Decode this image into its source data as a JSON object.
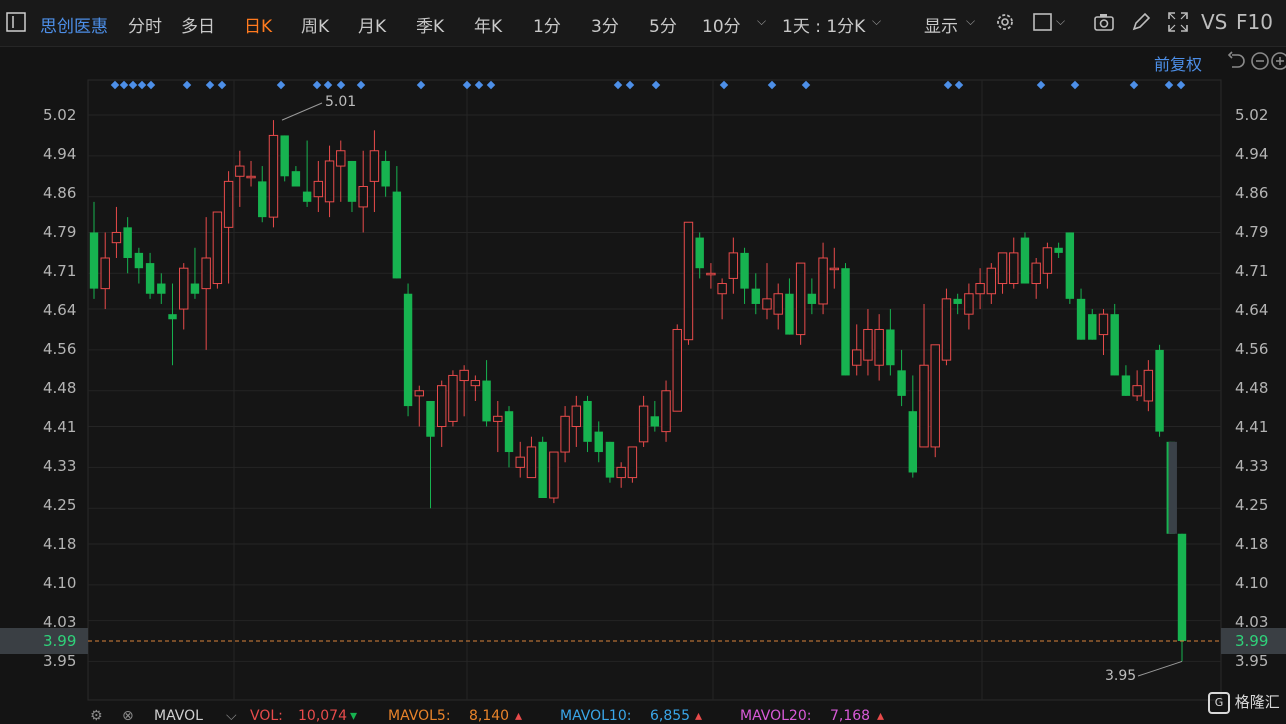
{
  "toolbar": {
    "expand_icon": "sidebar-toggle-icon",
    "stock_name": "思创医惠",
    "tabs": [
      "分时",
      "多日",
      "日K",
      "周K",
      "月K",
      "季K",
      "年K",
      "1分",
      "3分",
      "5分",
      "10分"
    ],
    "active_tab": "日K",
    "period_select": "1天 : 1分K",
    "display_label": "显示",
    "vs_label": "VS",
    "f10_label": "F10"
  },
  "subbar": {
    "adjust_label": "前复权"
  },
  "axis": {
    "left": [
      "5.02",
      "4.94",
      "4.86",
      "4.79",
      "4.71",
      "4.64",
      "4.56",
      "4.48",
      "4.41",
      "4.33",
      "4.25",
      "4.18",
      "4.10",
      "4.03",
      "3.99",
      "3.95"
    ],
    "right": [
      "5.02",
      "4.94",
      "4.86",
      "4.79",
      "4.71",
      "4.64",
      "4.56",
      "4.48",
      "4.41",
      "4.33",
      "4.25",
      "4.18",
      "4.10",
      "4.03",
      "3.99",
      "3.95"
    ],
    "current_price": "3.99"
  },
  "annotations": {
    "high": "5.01",
    "low": "3.95"
  },
  "colors": {
    "up": "#e84b4b",
    "down": "#17b350",
    "marker": "#4d8fe8",
    "current_line": "#d9823b"
  },
  "chart_data": {
    "type": "candlestick",
    "ylim": [
      3.92,
      5.08
    ],
    "high_label": 5.01,
    "low_label": 3.95,
    "current": 3.99,
    "candles": [
      {
        "o": 4.79,
        "h": 4.85,
        "l": 4.66,
        "c": 4.68
      },
      {
        "o": 4.68,
        "h": 4.79,
        "l": 4.64,
        "c": 4.74
      },
      {
        "o": 4.77,
        "h": 4.84,
        "l": 4.74,
        "c": 4.79
      },
      {
        "o": 4.8,
        "h": 4.82,
        "l": 4.71,
        "c": 4.74
      },
      {
        "o": 4.75,
        "h": 4.76,
        "l": 4.69,
        "c": 4.72
      },
      {
        "o": 4.73,
        "h": 4.75,
        "l": 4.66,
        "c": 4.67
      },
      {
        "o": 4.69,
        "h": 4.71,
        "l": 4.65,
        "c": 4.67
      },
      {
        "o": 4.63,
        "h": 4.69,
        "l": 4.53,
        "c": 4.62
      },
      {
        "o": 4.64,
        "h": 4.73,
        "l": 4.6,
        "c": 4.72
      },
      {
        "o": 4.69,
        "h": 4.76,
        "l": 4.66,
        "c": 4.67
      },
      {
        "o": 4.68,
        "h": 4.82,
        "l": 4.56,
        "c": 4.74
      },
      {
        "o": 4.69,
        "h": 4.83,
        "l": 4.68,
        "c": 4.83
      },
      {
        "o": 4.8,
        "h": 4.91,
        "l": 4.69,
        "c": 4.89
      },
      {
        "o": 4.9,
        "h": 4.95,
        "l": 4.84,
        "c": 4.92
      },
      {
        "o": 4.9,
        "h": 4.93,
        "l": 4.88,
        "c": 4.9
      },
      {
        "o": 4.89,
        "h": 4.92,
        "l": 4.81,
        "c": 4.82
      },
      {
        "o": 4.82,
        "h": 5.01,
        "l": 4.8,
        "c": 4.98
      },
      {
        "o": 4.98,
        "h": 4.98,
        "l": 4.89,
        "c": 4.9
      },
      {
        "o": 4.91,
        "h": 4.92,
        "l": 4.88,
        "c": 4.88
      },
      {
        "o": 4.87,
        "h": 4.97,
        "l": 4.84,
        "c": 4.85
      },
      {
        "o": 4.86,
        "h": 4.93,
        "l": 4.83,
        "c": 4.89
      },
      {
        "o": 4.85,
        "h": 4.96,
        "l": 4.82,
        "c": 4.93
      },
      {
        "o": 4.92,
        "h": 4.97,
        "l": 4.85,
        "c": 4.95
      },
      {
        "o": 4.93,
        "h": 4.93,
        "l": 4.83,
        "c": 4.85
      },
      {
        "o": 4.84,
        "h": 4.95,
        "l": 4.79,
        "c": 4.88
      },
      {
        "o": 4.89,
        "h": 4.99,
        "l": 4.83,
        "c": 4.95
      },
      {
        "o": 4.93,
        "h": 4.95,
        "l": 4.86,
        "c": 4.88
      },
      {
        "o": 4.87,
        "h": 4.92,
        "l": 4.7,
        "c": 4.7
      },
      {
        "o": 4.67,
        "h": 4.69,
        "l": 4.43,
        "c": 4.45
      },
      {
        "o": 4.47,
        "h": 4.49,
        "l": 4.41,
        "c": 4.48
      },
      {
        "o": 4.46,
        "h": 4.46,
        "l": 4.25,
        "c": 4.39
      },
      {
        "o": 4.41,
        "h": 4.5,
        "l": 4.37,
        "c": 4.49
      },
      {
        "o": 4.42,
        "h": 4.52,
        "l": 4.41,
        "c": 4.51
      },
      {
        "o": 4.5,
        "h": 4.53,
        "l": 4.43,
        "c": 4.52
      },
      {
        "o": 4.49,
        "h": 4.51,
        "l": 4.46,
        "c": 4.5
      },
      {
        "o": 4.5,
        "h": 4.54,
        "l": 4.41,
        "c": 4.42
      },
      {
        "o": 4.42,
        "h": 4.46,
        "l": 4.36,
        "c": 4.43
      },
      {
        "o": 4.44,
        "h": 4.45,
        "l": 4.33,
        "c": 4.36
      },
      {
        "o": 4.33,
        "h": 4.38,
        "l": 4.31,
        "c": 4.35
      },
      {
        "o": 4.31,
        "h": 4.39,
        "l": 4.31,
        "c": 4.37
      },
      {
        "o": 4.38,
        "h": 4.39,
        "l": 4.27,
        "c": 4.27
      },
      {
        "o": 4.27,
        "h": 4.36,
        "l": 4.26,
        "c": 4.36
      },
      {
        "o": 4.36,
        "h": 4.45,
        "l": 4.34,
        "c": 4.43
      },
      {
        "o": 4.41,
        "h": 4.47,
        "l": 4.37,
        "c": 4.45
      },
      {
        "o": 4.46,
        "h": 4.47,
        "l": 4.36,
        "c": 4.38
      },
      {
        "o": 4.4,
        "h": 4.42,
        "l": 4.34,
        "c": 4.36
      },
      {
        "o": 4.38,
        "h": 4.38,
        "l": 4.3,
        "c": 4.31
      },
      {
        "o": 4.31,
        "h": 4.34,
        "l": 4.29,
        "c": 4.33
      },
      {
        "o": 4.31,
        "h": 4.37,
        "l": 4.3,
        "c": 4.37
      },
      {
        "o": 4.38,
        "h": 4.47,
        "l": 4.37,
        "c": 4.45
      },
      {
        "o": 4.43,
        "h": 4.46,
        "l": 4.4,
        "c": 4.41
      },
      {
        "o": 4.4,
        "h": 4.5,
        "l": 4.38,
        "c": 4.48
      },
      {
        "o": 4.44,
        "h": 4.61,
        "l": 4.44,
        "c": 4.6
      },
      {
        "o": 4.58,
        "h": 4.81,
        "l": 4.57,
        "c": 4.81
      },
      {
        "o": 4.78,
        "h": 4.79,
        "l": 4.7,
        "c": 4.72
      },
      {
        "o": 4.71,
        "h": 4.73,
        "l": 4.68,
        "c": 4.71
      },
      {
        "o": 4.67,
        "h": 4.7,
        "l": 4.62,
        "c": 4.69
      },
      {
        "o": 4.7,
        "h": 4.78,
        "l": 4.67,
        "c": 4.75
      },
      {
        "o": 4.75,
        "h": 4.76,
        "l": 4.65,
        "c": 4.68
      },
      {
        "o": 4.68,
        "h": 4.71,
        "l": 4.63,
        "c": 4.65
      },
      {
        "o": 4.64,
        "h": 4.73,
        "l": 4.62,
        "c": 4.66
      },
      {
        "o": 4.63,
        "h": 4.69,
        "l": 4.6,
        "c": 4.67
      },
      {
        "o": 4.67,
        "h": 4.7,
        "l": 4.59,
        "c": 4.59
      },
      {
        "o": 4.59,
        "h": 4.73,
        "l": 4.57,
        "c": 4.73
      },
      {
        "o": 4.67,
        "h": 4.7,
        "l": 4.63,
        "c": 4.65
      },
      {
        "o": 4.65,
        "h": 4.77,
        "l": 4.63,
        "c": 4.74
      },
      {
        "o": 4.72,
        "h": 4.76,
        "l": 4.68,
        "c": 4.72
      },
      {
        "o": 4.72,
        "h": 4.73,
        "l": 4.51,
        "c": 4.51
      },
      {
        "o": 4.53,
        "h": 4.61,
        "l": 4.51,
        "c": 4.56
      },
      {
        "o": 4.54,
        "h": 4.64,
        "l": 4.51,
        "c": 4.6
      },
      {
        "o": 4.53,
        "h": 4.63,
        "l": 4.5,
        "c": 4.6
      },
      {
        "o": 4.6,
        "h": 4.64,
        "l": 4.51,
        "c": 4.53
      },
      {
        "o": 4.52,
        "h": 4.56,
        "l": 4.45,
        "c": 4.47
      },
      {
        "o": 4.44,
        "h": 4.51,
        "l": 4.31,
        "c": 4.32
      },
      {
        "o": 4.37,
        "h": 4.65,
        "l": 4.37,
        "c": 4.53
      },
      {
        "o": 4.37,
        "h": 4.57,
        "l": 4.35,
        "c": 4.57
      },
      {
        "o": 4.54,
        "h": 4.68,
        "l": 4.53,
        "c": 4.66
      },
      {
        "o": 4.66,
        "h": 4.67,
        "l": 4.63,
        "c": 4.65
      },
      {
        "o": 4.63,
        "h": 4.69,
        "l": 4.6,
        "c": 4.67
      },
      {
        "o": 4.67,
        "h": 4.72,
        "l": 4.64,
        "c": 4.69
      },
      {
        "o": 4.67,
        "h": 4.73,
        "l": 4.65,
        "c": 4.72
      },
      {
        "o": 4.69,
        "h": 4.74,
        "l": 4.67,
        "c": 4.75
      },
      {
        "o": 4.69,
        "h": 4.78,
        "l": 4.68,
        "c": 4.75
      },
      {
        "o": 4.78,
        "h": 4.79,
        "l": 4.69,
        "c": 4.69
      },
      {
        "o": 4.69,
        "h": 4.74,
        "l": 4.66,
        "c": 4.73
      },
      {
        "o": 4.71,
        "h": 4.77,
        "l": 4.68,
        "c": 4.76
      },
      {
        "o": 4.76,
        "h": 4.77,
        "l": 4.74,
        "c": 4.75
      },
      {
        "o": 4.79,
        "h": 4.79,
        "l": 4.65,
        "c": 4.66
      },
      {
        "o": 4.66,
        "h": 4.68,
        "l": 4.58,
        "c": 4.58
      },
      {
        "o": 4.63,
        "h": 4.64,
        "l": 4.58,
        "c": 4.58
      },
      {
        "o": 4.59,
        "h": 4.64,
        "l": 4.55,
        "c": 4.63
      },
      {
        "o": 4.63,
        "h": 4.65,
        "l": 4.51,
        "c": 4.51
      },
      {
        "o": 4.51,
        "h": 4.53,
        "l": 4.47,
        "c": 4.47
      },
      {
        "o": 4.47,
        "h": 4.52,
        "l": 4.46,
        "c": 4.49
      },
      {
        "o": 4.46,
        "h": 4.54,
        "l": 4.44,
        "c": 4.52
      },
      {
        "o": 4.56,
        "h": 4.57,
        "l": 4.39,
        "c": 4.4
      },
      {
        "o": 4.38,
        "h": 4.38,
        "l": 4.2,
        "c": 4.2
      },
      {
        "o": 4.2,
        "h": 4.2,
        "l": 3.95,
        "c": 3.99
      }
    ],
    "markers": [
      115,
      124,
      133,
      142,
      151,
      187,
      210,
      222,
      281,
      317,
      328,
      341,
      361,
      421,
      467,
      479,
      491,
      618,
      630,
      656,
      724,
      772,
      806,
      948,
      959,
      1041,
      1075,
      1134,
      1169,
      1181
    ]
  },
  "bottombar": {
    "settings_icon": "gear-icon",
    "close_icon": "close-icon",
    "indicator": "MAVOL",
    "vol_label": "VOL:",
    "vol_value": "10,074",
    "ma5_label": "MAVOL5:",
    "ma5_value": "8,140",
    "ma10_label": "MAVOL10:",
    "ma10_value": "6,855",
    "ma20_label": "MAVOL20:",
    "ma20_value": "7,168"
  },
  "watermark": "格隆汇"
}
